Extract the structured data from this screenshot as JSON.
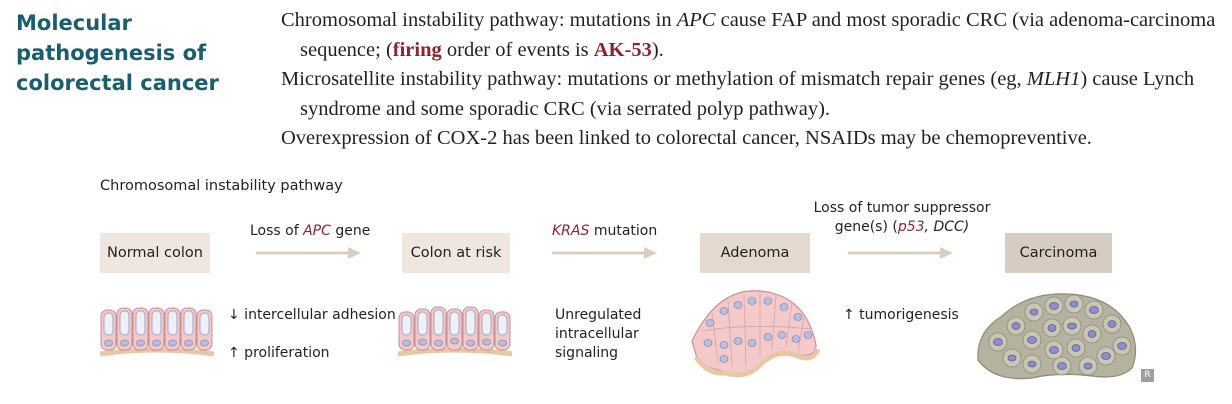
{
  "title": "Molecular pathogenesis of colorectal cancer",
  "paragraphs": {
    "p1": {
      "t1": "Chromosomal instability pathway: mutations in ",
      "apc": "APC",
      "t2": " cause FAP and most sporadic CRC (via adenoma-carcinoma sequence; (",
      "firing": "firing",
      "t3": " order of events is ",
      "ak": "AK-53",
      "t4": ")."
    },
    "p2": {
      "t1": "Microsatellite instability pathway: mutations or methylation of mismatch repair genes (eg, ",
      "mlh1": "MLH1",
      "t2": ") cause Lynch syndrome and some sporadic CRC (via serrated polyp pathway)."
    },
    "p3": "Overexpression of COX-2 has been linked to colorectal cancer, NSAIDs may be chemopreventive."
  },
  "diagram": {
    "title": "Chromosomal instability pathway",
    "stages": [
      "Normal colon",
      "Colon at risk",
      "Adenoma",
      "Carcinoma"
    ],
    "step1": {
      "pre": "Loss of ",
      "gene": "APC",
      "post": " gene"
    },
    "step2": {
      "gene": "KRAS",
      "post": " mutation"
    },
    "step3": {
      "line1": "Loss of tumor suppressor",
      "pre": "gene(s) (",
      "p53": "p53",
      "sep": ", ",
      "dcc": "DCC",
      "post": ")"
    },
    "effects": {
      "adhesion": "↓ intercellular adhesion",
      "proliferation": "↑ proliferation",
      "signaling": [
        "Unregulated",
        "intracellular",
        "signaling"
      ],
      "tumorigenesis": "↑ tumorigenesis"
    },
    "logo": "R"
  },
  "colors": {
    "title": "#1a5e6e",
    "accent_red": "#8b2332",
    "epithelium": "#f4c9c9",
    "nucleus": "#b8bedb",
    "tumor": "#b5b3a0",
    "arrow": "#d8cfc1"
  }
}
